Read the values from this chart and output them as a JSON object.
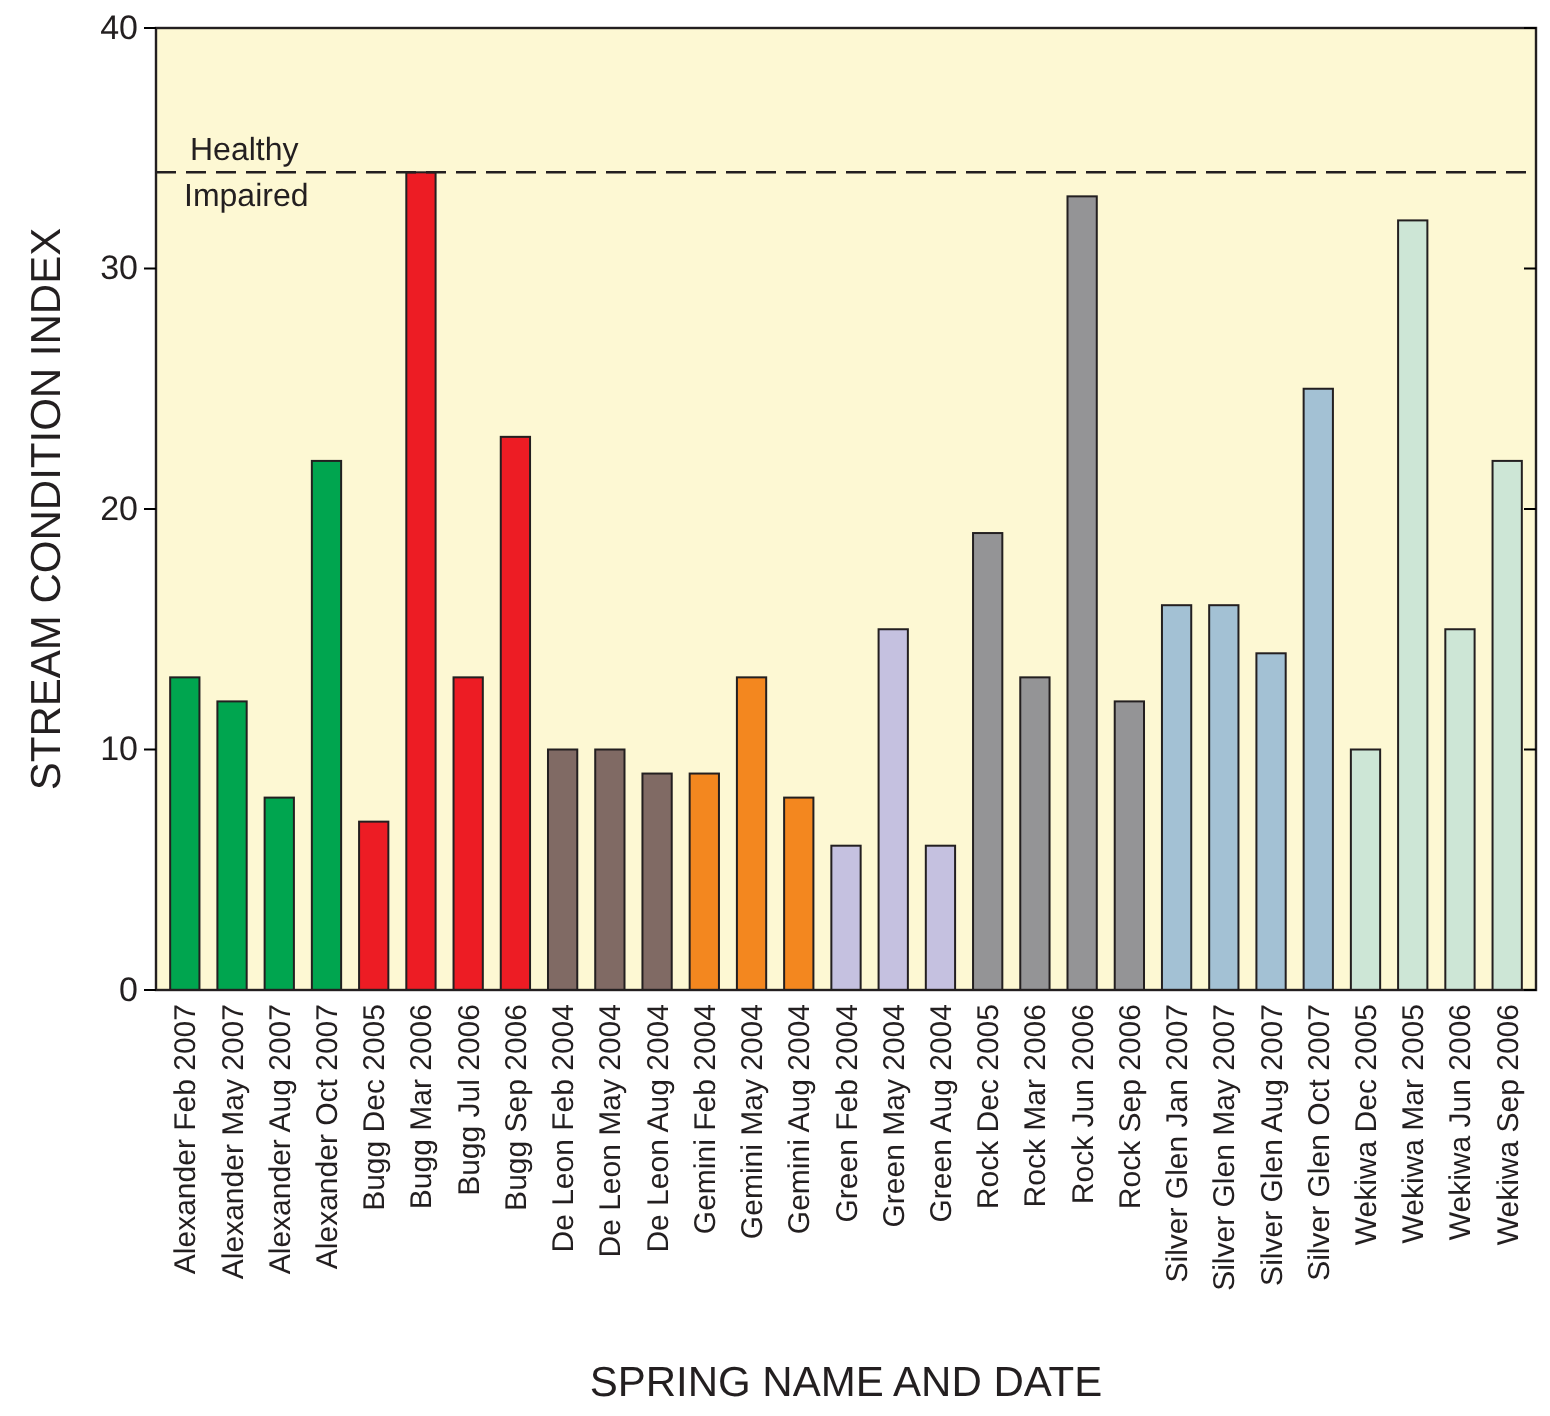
{
  "chart_data": {
    "type": "bar",
    "xlabel": "SPRING NAME AND DATE",
    "ylabel": "STREAM CONDITION INDEX",
    "categories": [
      "Alexander Feb 2007",
      "Alexander May 2007",
      "Alexander Aug 2007",
      "Alexander Oct 2007",
      "Bugg Dec 2005",
      "Bugg Mar 2006",
      "Bugg Jul 2006",
      "Bugg Sep 2006",
      "De Leon Feb 2004",
      "De Leon May 2004",
      "De Leon Aug 2004",
      "Gemini Feb 2004",
      "Gemini May 2004",
      "Gemini Aug 2004",
      "Green Feb 2004",
      "Green May 2004",
      "Green Aug 2004",
      "Rock Dec 2005",
      "Rock Mar 2006",
      "Rock Jun 2006",
      "Rock Sep 2006",
      "Silver Glen Jan 2007",
      "Silver Glen May 2007",
      "Silver Glen Aug 2007",
      "Silver Glen Oct 2007",
      "Wekiwa Dec 2005",
      "Wekiwa Mar 2005",
      "Wekiwa Jun 2006",
      "Wekiwa Sep 2006"
    ],
    "values": [
      13,
      12,
      8,
      22,
      7,
      34,
      13,
      23,
      10,
      10,
      9,
      9,
      13,
      8,
      6,
      15,
      6,
      19,
      13,
      33,
      12,
      16,
      16,
      14,
      25,
      10,
      32,
      15,
      22
    ],
    "colors": [
      "#00a54f",
      "#00a54f",
      "#00a54f",
      "#00a54f",
      "#ed1c24",
      "#ed1c24",
      "#ed1c24",
      "#ed1c24",
      "#806a64",
      "#806a64",
      "#806a64",
      "#f3871f",
      "#f3871f",
      "#f3871f",
      "#c5c1e0",
      "#c5c1e0",
      "#c5c1e0",
      "#949496",
      "#949496",
      "#949496",
      "#949496",
      "#a3c1d4",
      "#a3c1d4",
      "#a3c1d4",
      "#a3c1d4",
      "#cde6d6",
      "#cde6d6",
      "#cde6d6",
      "#cde6d6"
    ],
    "ylim": [
      0,
      40
    ],
    "yticks": [
      0,
      10,
      20,
      30,
      40
    ],
    "grid": false,
    "ref_lines": [
      {
        "axis": "y",
        "value": 34,
        "label": null,
        "line_style": "dashed",
        "color": "#231f20"
      }
    ],
    "annotations": [
      {
        "text": "Healthy",
        "y": 34
      },
      {
        "text": "Impaired",
        "y": 34
      }
    ]
  }
}
